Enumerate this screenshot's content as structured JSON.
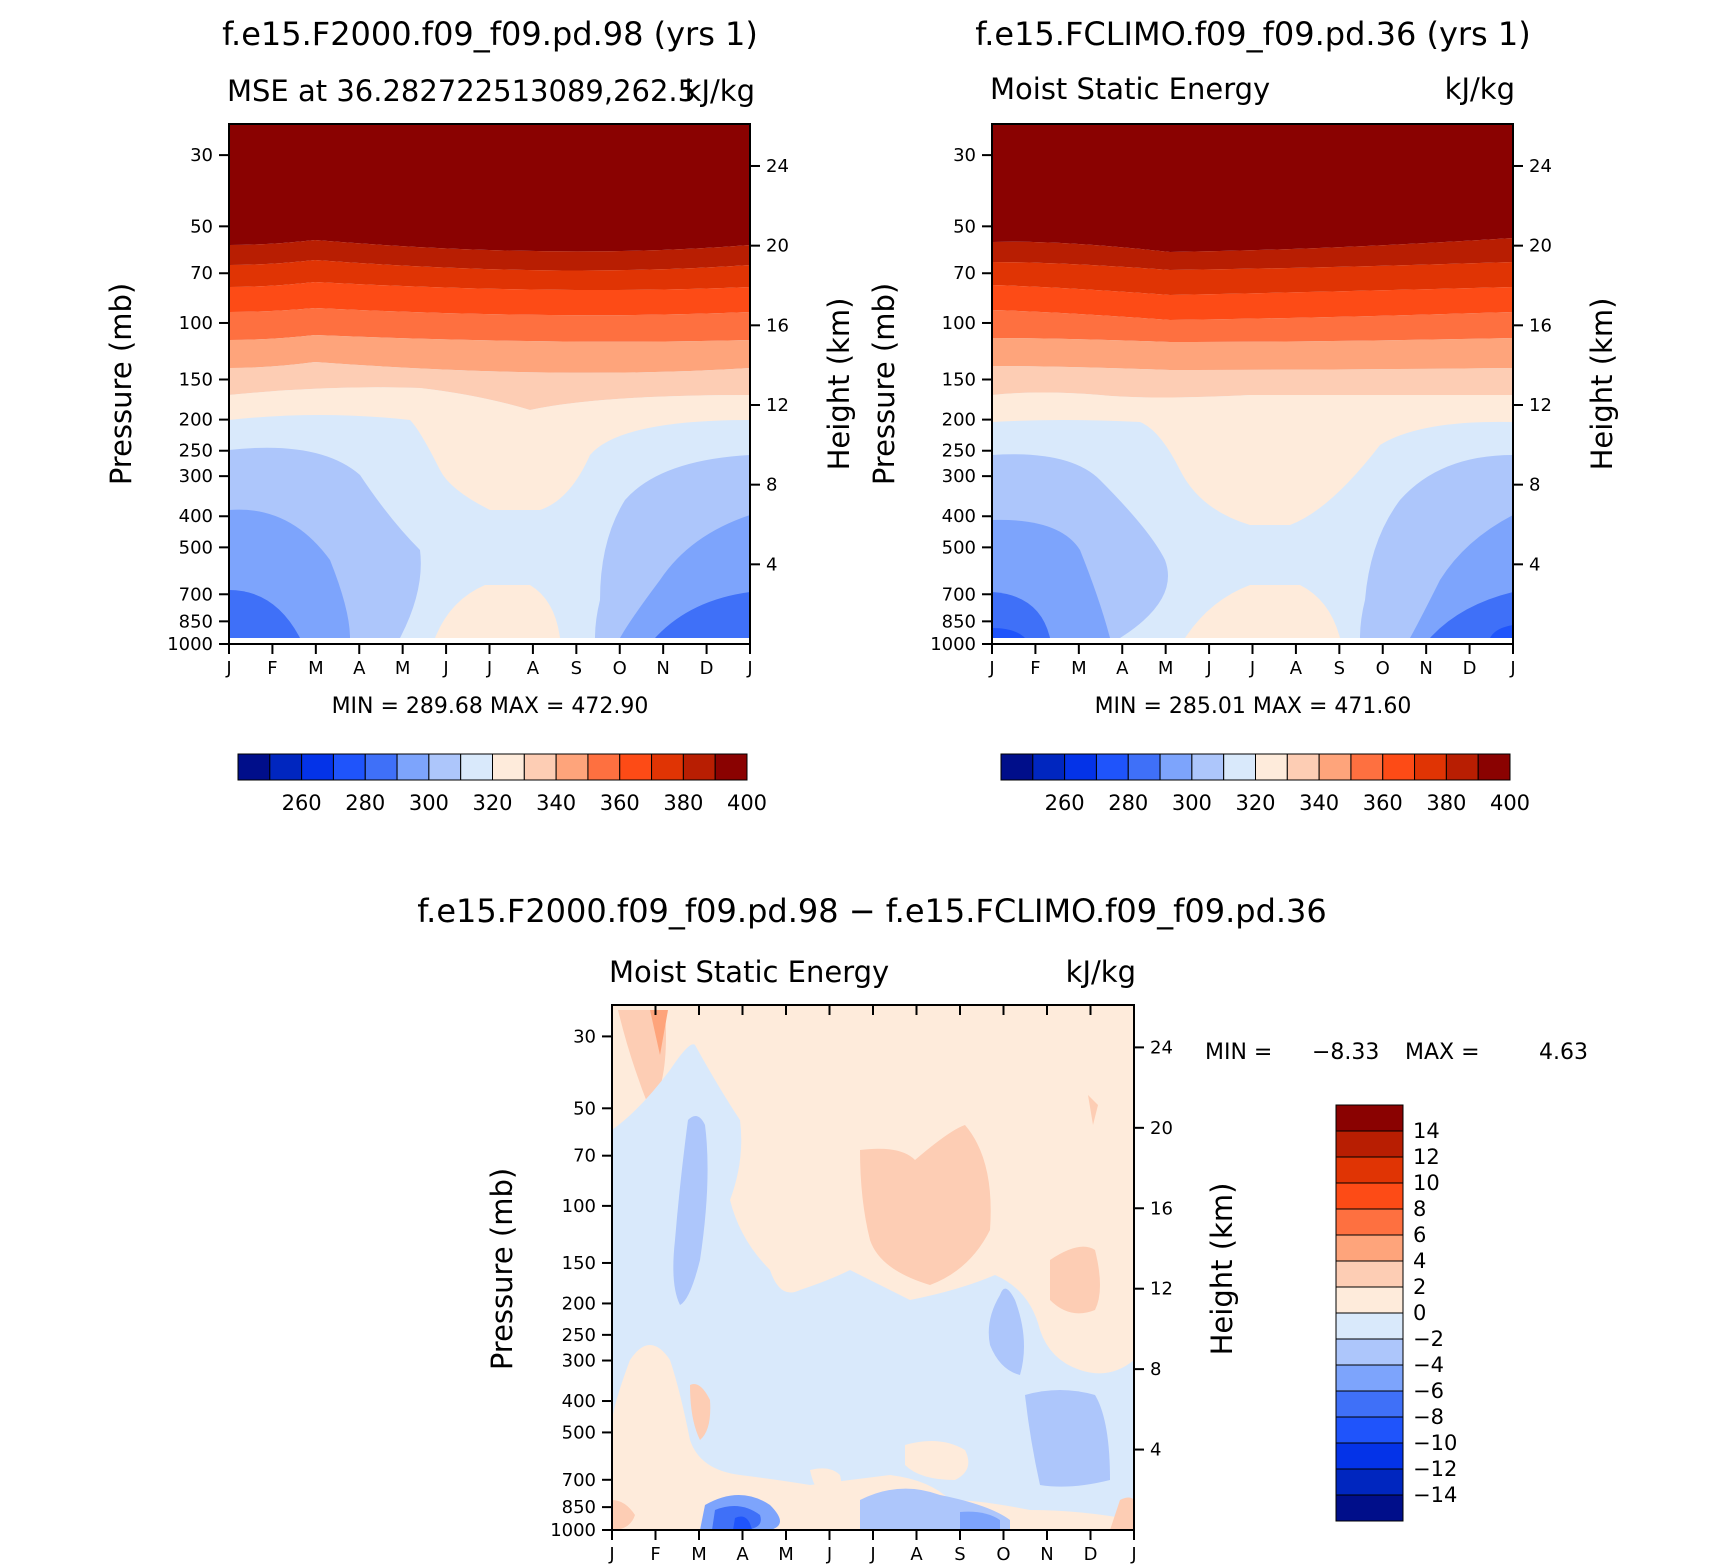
{
  "palette": {
    "levels": [
      -14,
      -12,
      -10,
      -8,
      -6,
      -4,
      -2,
      0,
      2,
      4,
      6,
      8,
      10,
      12,
      14
    ],
    "colors": [
      "#000e8a",
      "#0026bf",
      "#0433e8",
      "#1f54fb",
      "#3f70f8",
      "#7da4fc",
      "#adc6fb",
      "#d9e9fb",
      "#feebdb",
      "#fdcdb4",
      "#fea47b",
      "#fe7040",
      "#fd4b16",
      "#e03404",
      "#b81e02",
      "#8a0201"
    ]
  },
  "chart_data": [
    {
      "type": "contour",
      "title": "f.e15.F2000.f09_f09.pd.98 (yrs  1)",
      "left_label": "MSE at 36.282722513089,262.5",
      "units": "kJ/kg",
      "ylabel": "Pressure (mb)",
      "ylabel_right": "Height (km)",
      "x_ticks": [
        "J",
        "F",
        "M",
        "A",
        "M",
        "J",
        "J",
        "A",
        "S",
        "O",
        "N",
        "D",
        "J"
      ],
      "y_ticks": [
        "30",
        "50",
        "70",
        "100",
        "150",
        "200",
        "250",
        "300",
        "400",
        "500",
        "700",
        "850",
        "1000"
      ],
      "y_ticks_right": [
        "24",
        "20",
        "16",
        "12",
        "8",
        "4"
      ],
      "min_max_text": "MIN  =  289.68  MAX  =  472.90",
      "colorbar_labels": [
        "260",
        "280",
        "300",
        "320",
        "340",
        "360",
        "380",
        "400"
      ],
      "colorbar_levels": [
        250,
        260,
        270,
        280,
        290,
        300,
        310,
        320,
        330,
        340,
        350,
        360,
        370,
        380,
        390,
        400
      ],
      "min": 289.68,
      "max": 472.9
    },
    {
      "type": "contour",
      "title": "f.e15.FCLIMO.f09_f09.pd.36 (yrs  1)",
      "left_label": "Moist Static Energy",
      "units": "kJ/kg",
      "ylabel": "Pressure (mb)",
      "ylabel_right": "Height (km)",
      "x_ticks": [
        "J",
        "F",
        "M",
        "A",
        "M",
        "J",
        "J",
        "A",
        "S",
        "O",
        "N",
        "D",
        "J"
      ],
      "y_ticks": [
        "30",
        "50",
        "70",
        "100",
        "150",
        "200",
        "250",
        "300",
        "400",
        "500",
        "700",
        "850",
        "1000"
      ],
      "y_ticks_right": [
        "24",
        "20",
        "16",
        "12",
        "8",
        "4"
      ],
      "min_max_text": "MIN  =  285.01  MAX  =  471.60",
      "colorbar_labels": [
        "260",
        "280",
        "300",
        "320",
        "340",
        "360",
        "380",
        "400"
      ],
      "colorbar_levels": [
        250,
        260,
        270,
        280,
        290,
        300,
        310,
        320,
        330,
        340,
        350,
        360,
        370,
        380,
        390,
        400
      ],
      "min": 285.01,
      "max": 471.6
    },
    {
      "type": "contour",
      "title": "f.e15.F2000.f09_f09.pd.98 − f.e15.FCLIMO.f09_f09.pd.36",
      "left_label": "Moist Static Energy",
      "units": "kJ/kg",
      "ylabel": "Pressure (mb)",
      "ylabel_right": "Height (km)",
      "x_ticks": [
        "J",
        "F",
        "M",
        "A",
        "M",
        "J",
        "J",
        "A",
        "S",
        "O",
        "N",
        "D",
        "J"
      ],
      "y_ticks": [
        "30",
        "50",
        "70",
        "100",
        "150",
        "200",
        "250",
        "300",
        "400",
        "500",
        "700",
        "850",
        "1000"
      ],
      "y_ticks_right": [
        "24",
        "20",
        "16",
        "12",
        "8",
        "4"
      ],
      "min_label": "MIN  =",
      "min_value": "−8.33",
      "max_label": "MAX  =",
      "max_value": "4.63",
      "colorbar_labels": [
        "14",
        "12",
        "10",
        "8",
        "6",
        "4",
        "2",
        "0",
        "−2",
        "−4",
        "−6",
        "−8",
        "−10",
        "−12",
        "−14"
      ],
      "colorbar_levels": [
        -14,
        -12,
        -10,
        -8,
        -6,
        -4,
        -2,
        0,
        2,
        4,
        6,
        8,
        10,
        12,
        14
      ],
      "min": -8.33,
      "max": 4.63
    }
  ]
}
